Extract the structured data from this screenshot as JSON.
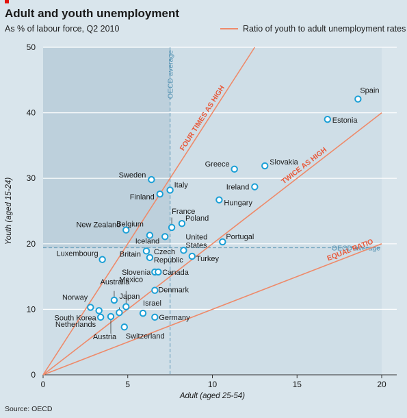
{
  "header": {
    "title": "Adult and youth unemployment",
    "subtitle": "As % of labour force, Q2 2010",
    "legend_label": "Ratio of youth to adult unemployment rates"
  },
  "footer": {
    "source": "Source: OECD"
  },
  "colors": {
    "plot_background": "#cfdee7",
    "shaded_region": "#bdd0dc",
    "ratio_line": "#ee8a6a",
    "ratio_label": "#e8593a",
    "oecd_line": "#6fa3bd",
    "oecd_label": "#4f8fb0",
    "point_stroke": "#1a9fd6",
    "gridline": "#ffffff"
  },
  "chart_data": {
    "type": "scatter",
    "title": "Adult and youth unemployment",
    "subtitle": "As % of labour force, Q2 2010",
    "xlabel": "Adult (aged 25-54)",
    "ylabel": "Youth (aged 15-24)",
    "xlim": [
      0,
      20
    ],
    "ylim": [
      0,
      50
    ],
    "xticks": [
      "0",
      "5",
      "10",
      "15",
      "20"
    ],
    "yticks": [
      "0",
      "10",
      "20",
      "30",
      "40",
      "50"
    ],
    "grid": "horizontal",
    "oecd_average": {
      "x": 7.5,
      "y": 19.4,
      "label_vertical": "OECD average",
      "label_horizontal": "OECD average"
    },
    "ratio_lines": [
      {
        "label": "FOUR TIMES AS HIGH",
        "ratio": 4
      },
      {
        "label": "TWICE AS HIGH",
        "ratio": 2
      },
      {
        "label": "EQUAL RATIO",
        "ratio": 1
      }
    ],
    "points": [
      {
        "country": "Spain",
        "x": 18.6,
        "y": 42.1
      },
      {
        "country": "Estonia",
        "x": 16.8,
        "y": 39.0
      },
      {
        "country": "Slovakia",
        "x": 13.1,
        "y": 31.9
      },
      {
        "country": "Greece",
        "x": 11.3,
        "y": 31.4
      },
      {
        "country": "Ireland",
        "x": 12.5,
        "y": 28.7
      },
      {
        "country": "Hungary",
        "x": 10.4,
        "y": 26.7
      },
      {
        "country": "Sweden",
        "x": 6.4,
        "y": 29.8
      },
      {
        "country": "Italy",
        "x": 7.5,
        "y": 28.2
      },
      {
        "country": "Finland",
        "x": 6.9,
        "y": 27.6
      },
      {
        "country": "France",
        "x": 7.6,
        "y": 22.5
      },
      {
        "country": "Poland",
        "x": 8.2,
        "y": 23.1
      },
      {
        "country": "New Zealand",
        "x": 4.9,
        "y": 22.1
      },
      {
        "country": "Belgium",
        "x": 6.3,
        "y": 21.3
      },
      {
        "country": "Iceland",
        "x": 7.2,
        "y": 21.1
      },
      {
        "country": "Portugal",
        "x": 10.6,
        "y": 20.3
      },
      {
        "country": "United States",
        "x": 8.3,
        "y": 19.0
      },
      {
        "country": "Britain",
        "x": 6.1,
        "y": 18.9
      },
      {
        "country": "Czech Republic",
        "x": 6.3,
        "y": 17.9
      },
      {
        "country": "Turkey",
        "x": 8.8,
        "y": 18.1
      },
      {
        "country": "Luxembourg",
        "x": 3.5,
        "y": 17.6
      },
      {
        "country": "Slovenia",
        "x": 6.6,
        "y": 15.7
      },
      {
        "country": "Canada",
        "x": 6.8,
        "y": 15.7
      },
      {
        "country": "Denmark",
        "x": 6.6,
        "y": 12.9
      },
      {
        "country": "Australia",
        "x": 4.2,
        "y": 11.4
      },
      {
        "country": "Mexico",
        "x": 4.9,
        "y": 10.4
      },
      {
        "country": "Norway",
        "x": 2.8,
        "y": 10.3
      },
      {
        "country": "South Korea",
        "x": 3.3,
        "y": 9.8
      },
      {
        "country": "Japan",
        "x": 4.5,
        "y": 9.5
      },
      {
        "country": "Netherlands",
        "x": 3.4,
        "y": 8.8
      },
      {
        "country": "Israel",
        "x": 5.9,
        "y": 9.4
      },
      {
        "country": "Germany",
        "x": 6.6,
        "y": 8.8
      },
      {
        "country": "Austria",
        "x": 4.0,
        "y": 8.9
      },
      {
        "country": "Switzerland",
        "x": 4.8,
        "y": 7.3
      }
    ]
  }
}
